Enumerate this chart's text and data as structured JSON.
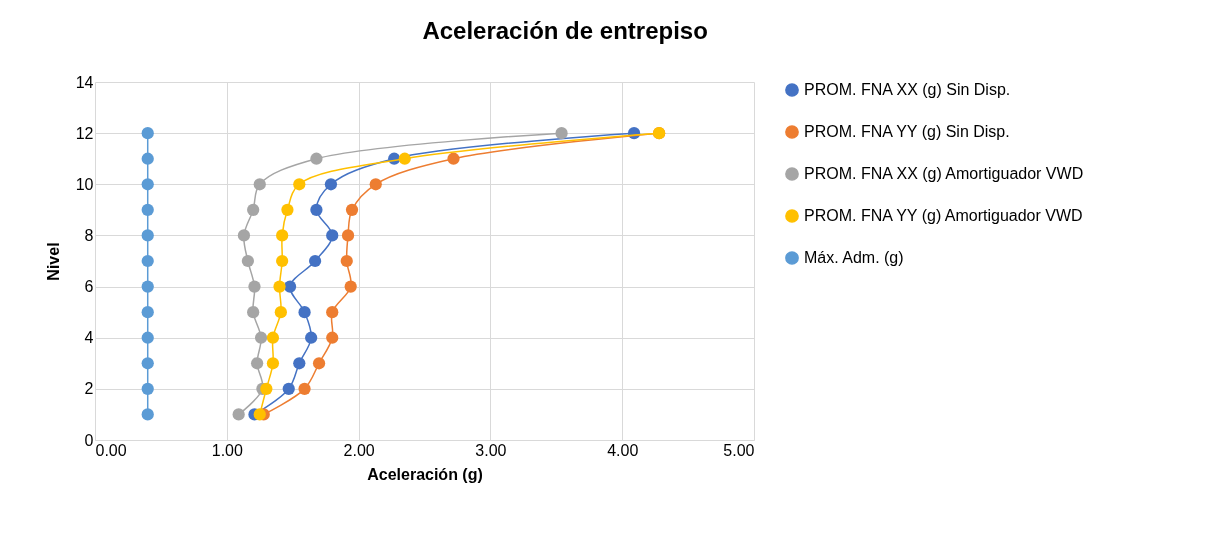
{
  "chart_data": {
    "type": "line",
    "title": "Aceleración de entrepiso",
    "xlabel": "Aceleración (g)",
    "ylabel": "Nivel",
    "xlim": [
      0,
      5
    ],
    "xticks": [
      {
        "value": 0,
        "label": "0.00"
      },
      {
        "value": 1,
        "label": "1.00"
      },
      {
        "value": 2,
        "label": "2.00"
      },
      {
        "value": 3,
        "label": "3.00"
      },
      {
        "value": 4,
        "label": "4.00"
      },
      {
        "value": 5,
        "label": "5.00"
      }
    ],
    "ylim": [
      0,
      14
    ],
    "yticks": [
      0,
      2,
      4,
      6,
      8,
      10,
      12,
      14
    ],
    "grid": true,
    "legend": "right",
    "marker": "circle",
    "series": [
      {
        "name": "PROM. FNA XX (g) Sin Disp.",
        "color": "#4472c4",
        "x": [
          1.21,
          1.47,
          1.55,
          1.64,
          1.59,
          1.48,
          1.67,
          1.8,
          1.68,
          1.79,
          2.27,
          4.09
        ],
        "values": [
          1,
          2,
          3,
          4,
          5,
          6,
          7,
          8,
          9,
          10,
          11,
          12
        ]
      },
      {
        "name": "PROM. FNA YY (g) Sin Disp.",
        "color": "#ed7d31",
        "x": [
          1.28,
          1.59,
          1.7,
          1.8,
          1.8,
          1.94,
          1.91,
          1.92,
          1.95,
          2.13,
          2.72,
          4.28
        ],
        "values": [
          1,
          2,
          3,
          4,
          5,
          6,
          7,
          8,
          9,
          10,
          11,
          12
        ]
      },
      {
        "name": "PROM. FNA XX (g) Amortiguador VWD",
        "color": "#a5a5a5",
        "x": [
          1.09,
          1.27,
          1.23,
          1.26,
          1.2,
          1.21,
          1.16,
          1.13,
          1.2,
          1.25,
          1.68,
          3.54
        ],
        "values": [
          1,
          2,
          3,
          4,
          5,
          6,
          7,
          8,
          9,
          10,
          11,
          12
        ]
      },
      {
        "name": "PROM. FNA YY (g) Amortiguador VWD",
        "color": "#ffc000",
        "x": [
          1.25,
          1.3,
          1.35,
          1.35,
          1.41,
          1.4,
          1.42,
          1.42,
          1.46,
          1.55,
          2.35,
          4.28
        ],
        "values": [
          1,
          2,
          3,
          4,
          5,
          6,
          7,
          8,
          9,
          10,
          11,
          12
        ]
      },
      {
        "name": "Máx. Adm. (g)",
        "color": "#5b9bd5",
        "x": [
          0.4,
          0.4,
          0.4,
          0.4,
          0.4,
          0.4,
          0.4,
          0.4,
          0.4,
          0.4,
          0.4,
          0.4
        ],
        "values": [
          1,
          2,
          3,
          4,
          5,
          6,
          7,
          8,
          9,
          10,
          11,
          12
        ]
      }
    ]
  }
}
